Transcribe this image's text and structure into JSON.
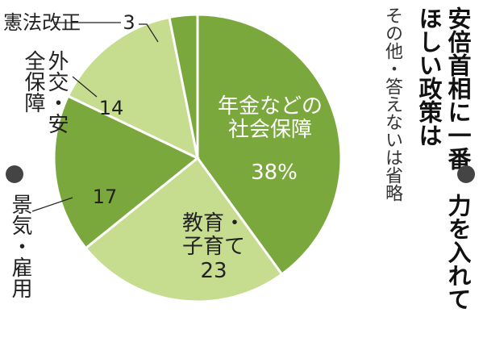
{
  "chart_data": {
    "type": "pie",
    "title": "安倍首相に一番、力を入れてほしい政策は",
    "note": "その他・答えないは省略",
    "categories": [
      "年金などの社会保障",
      "教育・子育て",
      "景気・雇用",
      "外交・安全保障",
      "憲法改正"
    ],
    "values": [
      38,
      23,
      17,
      14,
      3
    ],
    "value_labels": [
      "38%",
      "23",
      "17",
      "14",
      "3"
    ],
    "colors": [
      "#7ba83c",
      "#c6dd90",
      "#7ba83c",
      "#c6dd90",
      "#7ba83c"
    ]
  }
}
